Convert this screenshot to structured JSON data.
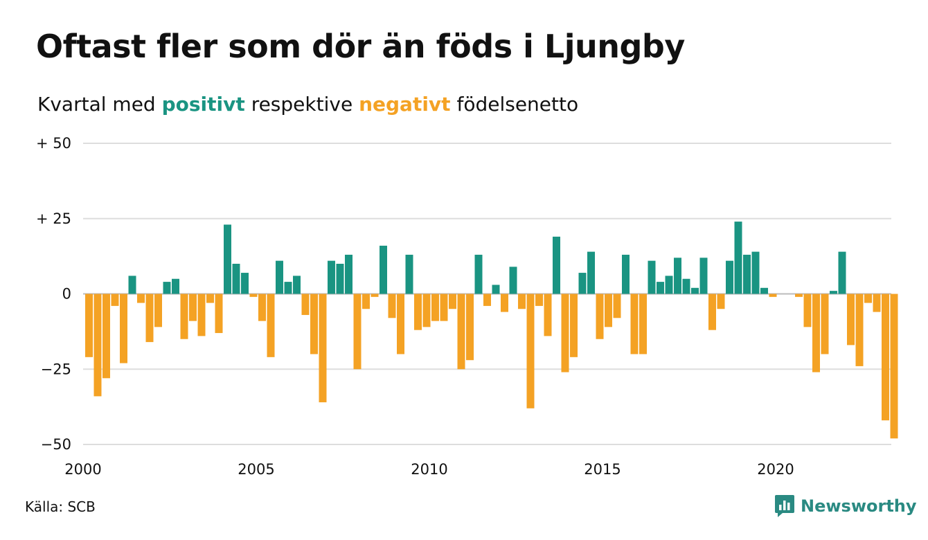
{
  "title": "Oftast fler som dör än föds i Ljungby",
  "subtitle": {
    "prefix": "Kvartal med",
    "positive_word": "positivt",
    "middle": "respektive",
    "negative_word": "negativt",
    "suffix": "födelsenetto"
  },
  "source": "Källa: SCB",
  "brand": {
    "name": "Newsworthy",
    "icon": "newsworthy-logo-icon"
  },
  "colors": {
    "positive": "#1a9482",
    "negative": "#f4a224",
    "grid": "#dddddd",
    "brand": "#2a8a82"
  },
  "chart_data": {
    "type": "bar",
    "title": "Oftast fler som dör än föds i Ljungby",
    "subtitle": "Kvartal med positivt respektive negativt födelsenetto",
    "x_start": "2000 Q1",
    "x_step": "quarter",
    "ylim": [
      -50,
      50
    ],
    "y_ticks": [
      {
        "value": 50,
        "label": "+ 50"
      },
      {
        "value": 25,
        "label": "+ 25"
      },
      {
        "value": 0,
        "label": "0"
      },
      {
        "value": -25,
        "label": "−25"
      },
      {
        "value": -50,
        "label": "−50"
      }
    ],
    "x_ticks": [
      "2000",
      "2005",
      "2010",
      "2015",
      "2020"
    ],
    "grid": true,
    "values": [
      -21,
      -34,
      -28,
      -4,
      -23,
      6,
      -3,
      -16,
      -11,
      4,
      5,
      -15,
      -9,
      -14,
      -3,
      -13,
      23,
      10,
      7,
      -1,
      -9,
      -21,
      11,
      4,
      6,
      -7,
      -20,
      -36,
      11,
      10,
      13,
      -25,
      -5,
      -1,
      16,
      -8,
      -20,
      13,
      -12,
      -11,
      -9,
      -9,
      -5,
      -25,
      -22,
      13,
      -4,
      3,
      -6,
      9,
      -5,
      -38,
      -4,
      -14,
      19,
      -26,
      -21,
      7,
      14,
      -15,
      -11,
      -8,
      13,
      -20,
      -20,
      11,
      4,
      6,
      12,
      5,
      2,
      12,
      -12,
      -5,
      11,
      24,
      13,
      14,
      2,
      -1,
      0,
      0,
      -1,
      -11,
      -26,
      -20,
      1,
      14,
      -17,
      -24,
      -3,
      -6,
      -42,
      -48
    ]
  }
}
